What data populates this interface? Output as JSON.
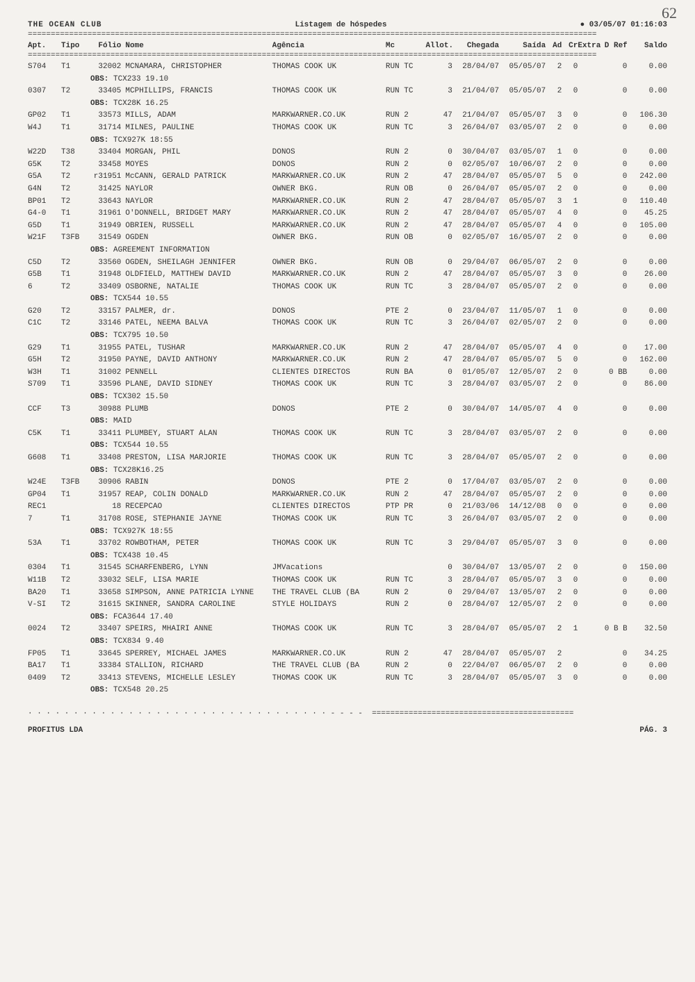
{
  "header": {
    "club": "THE OCEAN CLUB",
    "report_title": "Listagem de hóspedes",
    "timestamp": "03/05/07 01:16:03",
    "page_corner": "62",
    "divider": "============================================================================================================================"
  },
  "columns": {
    "apt": "Apt.",
    "tipo": "Tipo",
    "folio": "Fólio",
    "nome": "Nome",
    "agencia": "Agência",
    "mc": "Mc",
    "allot": "Allot.",
    "chegada": "Chegada",
    "saida": "Saída",
    "ad": "Ad",
    "cr": "Cr",
    "extra": "Extra",
    "dref": "D Ref",
    "saldo": "Saldo"
  },
  "rows": [
    {
      "apt": "S704",
      "tipo": "T1",
      "folio": "32002",
      "nome": "MCNAMARA, CHRISTOPHER",
      "ag": "THOMAS COOK UK",
      "mc": "RUN TC",
      "allot": "3",
      "cheg": "28/04/07",
      "said": "05/05/07",
      "ad": "2",
      "cr": "0",
      "extra": "",
      "dref": "0",
      "saldo": "0.00",
      "obs": "TCX233 19.10"
    },
    {
      "apt": "0307",
      "tipo": "T2",
      "folio": "33405",
      "nome": "MCPHILLIPS, FRANCIS",
      "ag": "THOMAS COOK UK",
      "mc": "RUN TC",
      "allot": "3",
      "cheg": "21/04/07",
      "said": "05/05/07",
      "ad": "2",
      "cr": "0",
      "extra": "",
      "dref": "0",
      "saldo": "0.00",
      "obs": "TCX28K 16.25"
    },
    {
      "apt": "GP02",
      "tipo": "T1",
      "folio": "33573",
      "nome": "MILLS, ADAM",
      "ag": "MARKWARNER.CO.UK",
      "mc": "RUN 2",
      "allot": "47",
      "cheg": "21/04/07",
      "said": "05/05/07",
      "ad": "3",
      "cr": "0",
      "extra": "",
      "dref": "0",
      "saldo": "106.30"
    },
    {
      "apt": "W4J",
      "tipo": "T1",
      "folio": "31714",
      "nome": "MILNES, PAULINE",
      "ag": "THOMAS COOK UK",
      "mc": "RUN TC",
      "allot": "3",
      "cheg": "26/04/07",
      "said": "03/05/07",
      "ad": "2",
      "cr": "0",
      "extra": "",
      "dref": "0",
      "saldo": "0.00",
      "obs": "TCX927K 18:55"
    },
    {
      "apt": "W22D",
      "tipo": "T38",
      "folio": "33404",
      "nome": "MORGAN, PHIL",
      "ag": "DONOS",
      "mc": "RUN 2",
      "allot": "0",
      "cheg": "30/04/07",
      "said": "03/05/07",
      "ad": "1",
      "cr": "0",
      "extra": "",
      "dref": "0",
      "saldo": "0.00"
    },
    {
      "apt": "G5K",
      "tipo": "T2",
      "folio": "33458",
      "nome": "MOYES",
      "ag": "DONOS",
      "mc": "RUN 2",
      "allot": "0",
      "cheg": "02/05/07",
      "said": "10/06/07",
      "ad": "2",
      "cr": "0",
      "extra": "",
      "dref": "0",
      "saldo": "0.00"
    },
    {
      "apt": "G5A",
      "tipo": "T2",
      "folio": "r31951",
      "nome": "McCANN, GERALD PATRICK",
      "ag": "MARKWARNER.CO.UK",
      "mc": "RUN 2",
      "allot": "47",
      "cheg": "28/04/07",
      "said": "05/05/07",
      "ad": "5",
      "cr": "0",
      "extra": "",
      "dref": "0",
      "saldo": "242.00"
    },
    {
      "apt": "G4N",
      "tipo": "T2",
      "folio": "31425",
      "nome": "NAYLOR",
      "ag": "OWNER BKG.",
      "mc": "RUN OB",
      "allot": "0",
      "cheg": "26/04/07",
      "said": "05/05/07",
      "ad": "2",
      "cr": "0",
      "extra": "",
      "dref": "0",
      "saldo": "0.00"
    },
    {
      "apt": "BP01",
      "tipo": "T2",
      "folio": "33643",
      "nome": "NAYLOR",
      "ag": "MARKWARNER.CO.UK",
      "mc": "RUN 2",
      "allot": "47",
      "cheg": "28/04/07",
      "said": "05/05/07",
      "ad": "3",
      "cr": "1",
      "extra": "",
      "dref": "0",
      "saldo": "110.40"
    },
    {
      "apt": "G4-0",
      "tipo": "T1",
      "folio": "31961",
      "nome": "O'DONNELL, BRIDGET MARY",
      "ag": "MARKWARNER.CO.UK",
      "mc": "RUN 2",
      "allot": "47",
      "cheg": "28/04/07",
      "said": "05/05/07",
      "ad": "4",
      "cr": "0",
      "extra": "",
      "dref": "0",
      "saldo": "45.25"
    },
    {
      "apt": "G5D",
      "tipo": "T1",
      "folio": "31949",
      "nome": "OBRIEN, RUSSELL",
      "ag": "MARKWARNER.CO.UK",
      "mc": "RUN 2",
      "allot": "47",
      "cheg": "28/04/07",
      "said": "05/05/07",
      "ad": "4",
      "cr": "0",
      "extra": "",
      "dref": "0",
      "saldo": "105.00"
    },
    {
      "apt": "W21F",
      "tipo": "T3FB",
      "folio": "31549",
      "nome": "OGDEN",
      "ag": "OWNER BKG.",
      "mc": "RUN OB",
      "allot": "0",
      "cheg": "02/05/07",
      "said": "16/05/07",
      "ad": "2",
      "cr": "0",
      "extra": "",
      "dref": "0",
      "saldo": "0.00",
      "obs": "AGREEMENT INFORMATION"
    },
    {
      "apt": "C5D",
      "tipo": "T2",
      "folio": "33560",
      "nome": "OGDEN, SHEILAGH JENNIFER",
      "ag": "OWNER BKG.",
      "mc": "RUN OB",
      "allot": "0",
      "cheg": "29/04/07",
      "said": "06/05/07",
      "ad": "2",
      "cr": "0",
      "extra": "",
      "dref": "0",
      "saldo": "0.00"
    },
    {
      "apt": "G5B",
      "tipo": "T1",
      "folio": "31948",
      "nome": "OLDFIELD, MATTHEW DAVID",
      "ag": "MARKWARNER.CO.UK",
      "mc": "RUN 2",
      "allot": "47",
      "cheg": "28/04/07",
      "said": "05/05/07",
      "ad": "3",
      "cr": "0",
      "extra": "",
      "dref": "0",
      "saldo": "26.00"
    },
    {
      "apt": "6",
      "tipo": "T2",
      "folio": "33409",
      "nome": "OSBORNE, NATALIE",
      "ag": "THOMAS COOK UK",
      "mc": "RUN TC",
      "allot": "3",
      "cheg": "28/04/07",
      "said": "05/05/07",
      "ad": "2",
      "cr": "0",
      "extra": "",
      "dref": "0",
      "saldo": "0.00",
      "obs": "TCX544 10.55"
    },
    {
      "apt": "G20",
      "tipo": "T2",
      "folio": "33157",
      "nome": "PALMER, dr.",
      "ag": "DONOS",
      "mc": "PTE 2",
      "allot": "0",
      "cheg": "23/04/07",
      "said": "11/05/07",
      "ad": "1",
      "cr": "0",
      "extra": "",
      "dref": "0",
      "saldo": "0.00"
    },
    {
      "apt": "C1C",
      "tipo": "T2",
      "folio": "33146",
      "nome": "PATEL, NEEMA BALVA",
      "ag": "THOMAS COOK UK",
      "mc": "RUN TC",
      "allot": "3",
      "cheg": "26/04/07",
      "said": "02/05/07",
      "ad": "2",
      "cr": "0",
      "extra": "",
      "dref": "0",
      "saldo": "0.00",
      "obs": "TCX795 10.50"
    },
    {
      "apt": "G29",
      "tipo": "T1",
      "folio": "31955",
      "nome": "PATEL, TUSHAR",
      "ag": "MARKWARNER.CO.UK",
      "mc": "RUN 2",
      "allot": "47",
      "cheg": "28/04/07",
      "said": "05/05/07",
      "ad": "4",
      "cr": "0",
      "extra": "",
      "dref": "0",
      "saldo": "17.00"
    },
    {
      "apt": "G5H",
      "tipo": "T2",
      "folio": "31950",
      "nome": "PAYNE, DAVID ANTHONY",
      "ag": "MARKWARNER.CO.UK",
      "mc": "RUN 2",
      "allot": "47",
      "cheg": "28/04/07",
      "said": "05/05/07",
      "ad": "5",
      "cr": "0",
      "extra": "",
      "dref": "0",
      "saldo": "162.00"
    },
    {
      "apt": "W3H",
      "tipo": "T1",
      "folio": "31002",
      "nome": "PENNELL",
      "ag": "CLIENTES DIRECTOS",
      "mc": "RUN BA",
      "allot": "0",
      "cheg": "01/05/07",
      "said": "12/05/07",
      "ad": "2",
      "cr": "0",
      "extra": "",
      "dref": "0 BB",
      "saldo": "0.00"
    },
    {
      "apt": "S709",
      "tipo": "T1",
      "folio": "33596",
      "nome": "PLANE, DAVID SIDNEY",
      "ag": "THOMAS COOK UK",
      "mc": "RUN TC",
      "allot": "3",
      "cheg": "28/04/07",
      "said": "03/05/07",
      "ad": "2",
      "cr": "0",
      "extra": "",
      "dref": "0",
      "saldo": "86.00",
      "obs": "TCX302 15.50"
    },
    {
      "apt": "CCF",
      "tipo": "T3",
      "folio": "30988",
      "nome": "PLUMB",
      "ag": "DONOS",
      "mc": "PTE 2",
      "allot": "0",
      "cheg": "30/04/07",
      "said": "14/05/07",
      "ad": "4",
      "cr": "0",
      "extra": "",
      "dref": "0",
      "saldo": "0.00",
      "obs": "MAID"
    },
    {
      "apt": "C5K",
      "tipo": "T1",
      "folio": "33411",
      "nome": "PLUMBEY, STUART ALAN",
      "ag": "THOMAS COOK UK",
      "mc": "RUN TC",
      "allot": "3",
      "cheg": "28/04/07",
      "said": "03/05/07",
      "ad": "2",
      "cr": "0",
      "extra": "",
      "dref": "0",
      "saldo": "0.00",
      "obs": "TCX544 10.55"
    },
    {
      "apt": "G608",
      "tipo": "T1",
      "folio": "33408",
      "nome": "PRESTON, LISA MARJORIE",
      "ag": "THOMAS COOK UK",
      "mc": "RUN TC",
      "allot": "3",
      "cheg": "28/04/07",
      "said": "05/05/07",
      "ad": "2",
      "cr": "0",
      "extra": "",
      "dref": "0",
      "saldo": "0.00",
      "obs": "TCX28K16.25"
    },
    {
      "apt": "W24E",
      "tipo": "T3FB",
      "folio": "30906",
      "nome": "RABIN",
      "ag": "DONOS",
      "mc": "PTE 2",
      "allot": "0",
      "cheg": "17/04/07",
      "said": "03/05/07",
      "ad": "2",
      "cr": "0",
      "extra": "",
      "dref": "0",
      "saldo": "0.00"
    },
    {
      "apt": "GP04",
      "tipo": "T1",
      "folio": "31957",
      "nome": "REAP, COLIN DONALD",
      "ag": "MARKWARNER.CO.UK",
      "mc": "RUN 2",
      "allot": "47",
      "cheg": "28/04/07",
      "said": "05/05/07",
      "ad": "2",
      "cr": "0",
      "extra": "",
      "dref": "0",
      "saldo": "0.00"
    },
    {
      "apt": "REC1",
      "tipo": "",
      "folio": "18",
      "nome": "RECEPCAO",
      "ag": "CLIENTES DIRECTOS",
      "mc": "PTP PR",
      "allot": "0",
      "cheg": "21/03/06",
      "said": "14/12/08",
      "ad": "0",
      "cr": "0",
      "extra": "",
      "dref": "0",
      "saldo": "0.00"
    },
    {
      "apt": "7",
      "tipo": "T1",
      "folio": "31708",
      "nome": "ROSE, STEPHANIE JAYNE",
      "ag": "THOMAS COOK UK",
      "mc": "RUN TC",
      "allot": "3",
      "cheg": "26/04/07",
      "said": "03/05/07",
      "ad": "2",
      "cr": "0",
      "extra": "",
      "dref": "0",
      "saldo": "0.00",
      "obs": "TCX927K 18:55"
    },
    {
      "apt": "53A",
      "tipo": "T1",
      "folio": "33702",
      "nome": "ROWBOTHAM, PETER",
      "ag": "THOMAS COOK UK",
      "mc": "RUN TC",
      "allot": "3",
      "cheg": "29/04/07",
      "said": "05/05/07",
      "ad": "3",
      "cr": "0",
      "extra": "",
      "dref": "0",
      "saldo": "0.00",
      "obs": "TCX438 10.45"
    },
    {
      "apt": "0304",
      "tipo": "T1",
      "folio": "31545",
      "nome": "SCHARFENBERG, LYNN",
      "ag": "JMVacations",
      "mc": "",
      "allot": "0",
      "cheg": "30/04/07",
      "said": "13/05/07",
      "ad": "2",
      "cr": "0",
      "extra": "",
      "dref": "0",
      "saldo": "150.00"
    },
    {
      "apt": "W11B",
      "tipo": "T2",
      "folio": "33032",
      "nome": "SELF, LISA MARIE",
      "ag": "THOMAS COOK UK",
      "mc": "RUN TC",
      "allot": "3",
      "cheg": "28/04/07",
      "said": "05/05/07",
      "ad": "3",
      "cr": "0",
      "extra": "",
      "dref": "0",
      "saldo": "0.00"
    },
    {
      "apt": "BA20",
      "tipo": "T1",
      "folio": "33658",
      "nome": "SIMPSON, ANNE PATRICIA LYNNE",
      "ag": "THE TRAVEL CLUB (BA",
      "mc": "RUN 2",
      "allot": "0",
      "cheg": "29/04/07",
      "said": "13/05/07",
      "ad": "2",
      "cr": "0",
      "extra": "",
      "dref": "0",
      "saldo": "0.00"
    },
    {
      "apt": "V-SI",
      "tipo": "T2",
      "folio": "31615",
      "nome": "SKINNER, SANDRA CAROLINE",
      "ag": "STYLE HOLIDAYS",
      "mc": "RUN 2",
      "allot": "0",
      "cheg": "28/04/07",
      "said": "12/05/07",
      "ad": "2",
      "cr": "0",
      "extra": "",
      "dref": "0",
      "saldo": "0.00",
      "obs": "FCA3644 17.40"
    },
    {
      "apt": "0024",
      "tipo": "T2",
      "folio": "33407",
      "nome": "SPEIRS, MHAIRI ANNE",
      "ag": "THOMAS COOK UK",
      "mc": "RUN TC",
      "allot": "3",
      "cheg": "28/04/07",
      "said": "05/05/07",
      "ad": "2",
      "cr": "1",
      "extra": "",
      "dref": "0 B B",
      "saldo": "32.50",
      "obs": "TCX834 9.40"
    },
    {
      "apt": "FP05",
      "tipo": "T1",
      "folio": "33645",
      "nome": "SPERREY, MICHAEL JAMES",
      "ag": "MARKWARNER.CO.UK",
      "mc": "RUN 2",
      "allot": "47",
      "cheg": "28/04/07",
      "said": "05/05/07",
      "ad": "2",
      "cr": "",
      "extra": "",
      "dref": "0",
      "saldo": "34.25"
    },
    {
      "apt": "BA17",
      "tipo": "T1",
      "folio": "33384",
      "nome": "STALLION, RICHARD",
      "ag": "THE TRAVEL CLUB (BA",
      "mc": "RUN 2",
      "allot": "0",
      "cheg": "22/04/07",
      "said": "06/05/07",
      "ad": "2",
      "cr": "0",
      "extra": "",
      "dref": "0",
      "saldo": "0.00"
    },
    {
      "apt": "0409",
      "tipo": "T2",
      "folio": "33413",
      "nome": "STEVENS, MICHELLE LESLEY",
      "ag": "THOMAS COOK UK",
      "mc": "RUN TC",
      "allot": "3",
      "cheg": "28/04/07",
      "said": "05/05/07",
      "ad": "3",
      "cr": "0",
      "extra": "",
      "dref": "0",
      "saldo": "0.00",
      "obs": "TCX548 20.25"
    }
  ],
  "labels": {
    "obs": "OBS:"
  },
  "footer": {
    "left_divider": "· · · · · · · · · · · · · · · · · · · · · · · · · · · · · · · · · - - - -  ============================================",
    "company": "PROFITUS LDA",
    "page": "PÁG. 3"
  }
}
